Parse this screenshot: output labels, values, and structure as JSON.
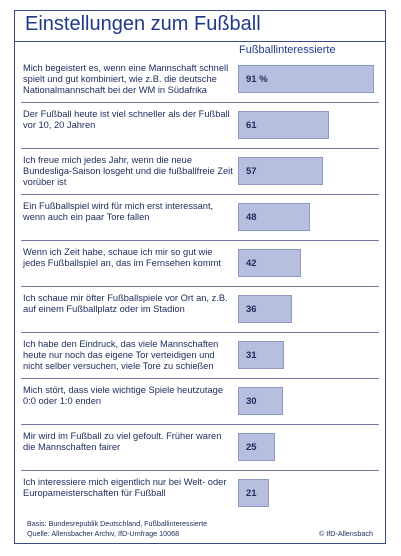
{
  "chart_data": {
    "type": "bar",
    "orientation": "horizontal",
    "title": "Einstellungen zum Fußball",
    "series": [
      {
        "name": "Fußballinteressierte",
        "values": [
          91,
          61,
          57,
          48,
          42,
          36,
          31,
          30,
          25,
          21
        ]
      }
    ],
    "categories": [
      "Mich begeistert es, wenn eine Mannschaft schnell spielt und gut kombiniert, wie z.B. die deutsche Nationalmannschaft bei der WM in Südafrika",
      "Der Fußball heute ist viel schneller als der Fußball vor 10, 20 Jahren",
      "Ich freue mich jedes Jahr, wenn die neue Bundesliga-Saison losgeht und die fußballfreie Zeit vorüber ist",
      "Ein Fußballspiel wird für mich erst interessant, wenn auch ein paar Tore fallen",
      "Wenn ich Zeit habe, schaue ich mir so gut wie jedes Fußballspiel an, das im Fernsehen kommt",
      "Ich schaue mir öfter Fußballspiele vor Ort an, z.B. auf einem Fußballplatz oder im Stadion",
      "Ich habe den Eindruck, das viele Mannschaften heute nur noch das eigene Tor verteidigen und nicht selber versuchen, viele Tore zu schießen",
      "Mich stört, dass viele wichtige Spiele heutzutage 0:0 oder 1:0 enden",
      "Mir wird im Fußball zu viel gefoult. Früher waren die Mannschaften fairer",
      "Ich interessiere mich eigentlich nur bei Welt- oder Europameisterschaften für Fußball"
    ],
    "value_labels": [
      "91 %",
      "61",
      "57",
      "48",
      "42",
      "36",
      "31",
      "30",
      "25",
      "21"
    ],
    "xlim": [
      0,
      100
    ],
    "grid": false,
    "legend": "none",
    "colors": {
      "bar": "#b6bfdd",
      "bar_border": "#8e98c4",
      "title": "#1f3a8a",
      "text": "#1d2a5c"
    }
  },
  "footer": {
    "basis": "Basis: Bundesrepublik Deutschland, Fußballinteressierte",
    "source": "Quelle: Allensbacher Archiv, IfD-Umfrage 10068",
    "credit": "© IfD-Allensbach"
  }
}
